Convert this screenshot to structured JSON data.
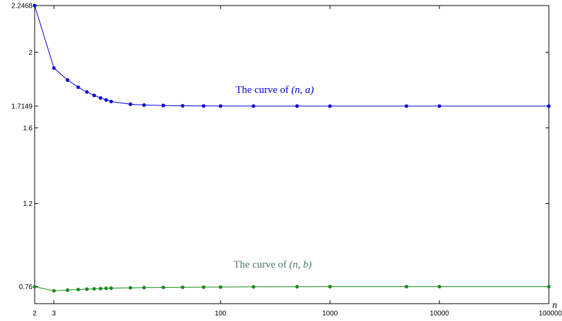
{
  "chart_data": {
    "type": "line",
    "title": "",
    "xlabel": "n",
    "ylabel": "",
    "x_scale": "log",
    "xlim": [
      2,
      100000
    ],
    "ylim": [
      0.67,
      2.2468
    ],
    "x_ticks": [
      {
        "value": 2,
        "label": "2"
      },
      {
        "value": 3,
        "label": "3"
      },
      {
        "value": 100,
        "label": "100"
      },
      {
        "value": 1000,
        "label": "1000"
      },
      {
        "value": 10000,
        "label": "10000"
      },
      {
        "value": 100000,
        "label": "100000"
      }
    ],
    "y_ticks": [
      {
        "value": 0.76,
        "label": "0.76"
      },
      {
        "value": 1.2,
        "label": "1.2"
      },
      {
        "value": 1.6,
        "label": "1.6"
      },
      {
        "value": 1.7149,
        "label": "1.7149"
      },
      {
        "value": 2,
        "label": "2"
      },
      {
        "value": 2.2468,
        "label": "2.2468"
      }
    ],
    "grid": false,
    "x": [
      2,
      3,
      4,
      5,
      6,
      7,
      8,
      9,
      10,
      15,
      20,
      30,
      45,
      70,
      100,
      200,
      500,
      1000,
      5000,
      10000,
      100000
    ],
    "series": [
      {
        "name": "The curve of (n,a)",
        "color": "#0000dd",
        "values": [
          2.2468,
          1.9161,
          1.8526,
          1.8147,
          1.7895,
          1.7715,
          1.758,
          1.7475,
          1.7391,
          1.7252,
          1.7205,
          1.7182,
          1.7166,
          1.7158,
          1.7154,
          1.7151,
          1.715,
          1.7149,
          1.7149,
          1.7149,
          1.7149
        ]
      },
      {
        "name": "The curve of (n,b)",
        "color": "#1a8a1a",
        "values": [
          0.76,
          0.738,
          0.742,
          0.745,
          0.747,
          0.7485,
          0.7497,
          0.751,
          0.752,
          0.754,
          0.755,
          0.756,
          0.7568,
          0.7575,
          0.758,
          0.759,
          0.7596,
          0.76,
          0.76,
          0.76,
          0.76
        ]
      }
    ],
    "annotations": [
      {
        "prefix": "The curve of ",
        "math": "(n, a)",
        "color": "#0000dd"
      },
      {
        "prefix": "The curve of ",
        "math": "(n, b)",
        "color": "#4a7a6a"
      }
    ]
  }
}
